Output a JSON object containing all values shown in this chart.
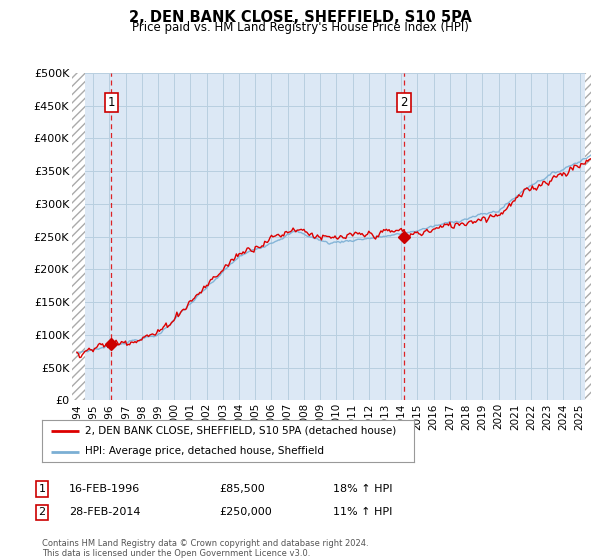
{
  "title": "2, DEN BANK CLOSE, SHEFFIELD, S10 5PA",
  "subtitle": "Price paid vs. HM Land Registry's House Price Index (HPI)",
  "ylim": [
    0,
    500000
  ],
  "yticks": [
    0,
    50000,
    100000,
    150000,
    200000,
    250000,
    300000,
    350000,
    400000,
    450000,
    500000
  ],
  "ytick_labels": [
    "£0",
    "£50K",
    "£100K",
    "£150K",
    "£200K",
    "£250K",
    "£300K",
    "£350K",
    "£400K",
    "£450K",
    "£500K"
  ],
  "xlim_start": 1993.7,
  "xlim_end": 2025.7,
  "plot_bg_color": "#dce8f5",
  "fig_bg_color": "#ffffff",
  "grid_color": "#b8cfe0",
  "sale1_date": 1996.12,
  "sale1_price": 85500,
  "sale1_label": "1",
  "sale2_date": 2014.17,
  "sale2_price": 250000,
  "sale2_label": "2",
  "legend_line1": "2, DEN BANK CLOSE, SHEFFIELD, S10 5PA (detached house)",
  "legend_line2": "HPI: Average price, detached house, Sheffield",
  "footer": "Contains HM Land Registry data © Crown copyright and database right 2024.\nThis data is licensed under the Open Government Licence v3.0.",
  "red_line_color": "#dd0000",
  "blue_line_color": "#7bafd4",
  "marker_color": "#cc0000",
  "xticks": [
    1994,
    1995,
    1996,
    1997,
    1998,
    1999,
    2000,
    2001,
    2002,
    2003,
    2004,
    2005,
    2006,
    2007,
    2008,
    2009,
    2010,
    2011,
    2012,
    2013,
    2014,
    2015,
    2016,
    2017,
    2018,
    2019,
    2020,
    2021,
    2022,
    2023,
    2024,
    2025
  ],
  "hatch_left_end": 1994.5,
  "hatch_right_start": 2025.3
}
